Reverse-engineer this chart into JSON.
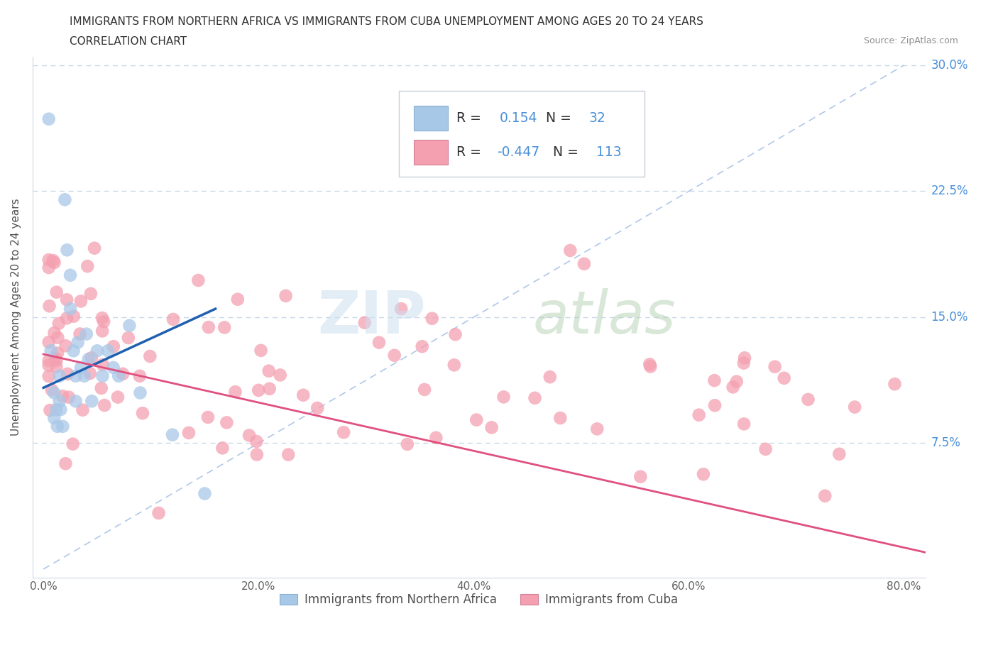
{
  "title_line1": "IMMIGRANTS FROM NORTHERN AFRICA VS IMMIGRANTS FROM CUBA UNEMPLOYMENT AMONG AGES 20 TO 24 YEARS",
  "title_line2": "CORRELATION CHART",
  "source": "Source: ZipAtlas.com",
  "ylabel": "Unemployment Among Ages 20 to 24 years",
  "xlim": [
    -0.01,
    0.82
  ],
  "ylim": [
    -0.005,
    0.305
  ],
  "xticks": [
    0.0,
    0.2,
    0.4,
    0.6,
    0.8
  ],
  "xticklabels": [
    "0.0%",
    "20.0%",
    "40.0%",
    "60.0%",
    "80.0%"
  ],
  "yticks": [
    0.0,
    0.075,
    0.15,
    0.225,
    0.3
  ],
  "yticklabels": [
    "",
    "7.5%",
    "15.0%",
    "22.5%",
    "30.0%"
  ],
  "legend_label1": "Immigrants from Northern Africa",
  "legend_label2": "Immigrants from Cuba",
  "R1": 0.154,
  "N1": 32,
  "R2": -0.447,
  "N2": 113,
  "color_blue": "#a8c8e8",
  "color_pink": "#f4a0b0",
  "color_blue_line": "#2060b0",
  "color_pink_line": "#e05080",
  "color_diag_line": "#b0c8e8",
  "color_tick_labels_y": "#4a90d9",
  "color_source": "#909090",
  "background_color": "#ffffff",
  "blue_trend_x0": 0.0,
  "blue_trend_y0": 0.108,
  "blue_trend_x1": 0.16,
  "blue_trend_y1": 0.155,
  "pink_trend_x0": 0.0,
  "pink_trend_y0": 0.128,
  "pink_trend_x1": 0.82,
  "pink_trend_y1": 0.01
}
